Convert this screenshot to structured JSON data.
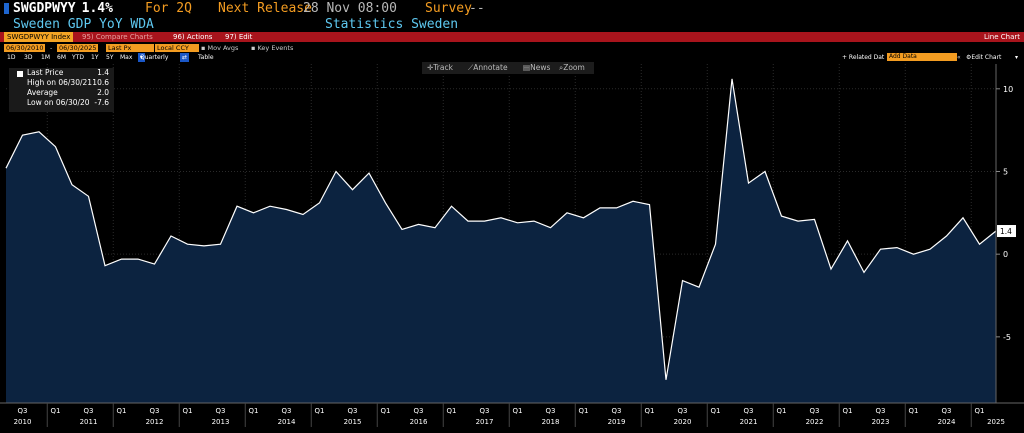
{
  "header": {
    "ticker": "SWGDPWYY",
    "value": "1.4%",
    "period_label": "For 2Q",
    "next_release_label": "Next Release",
    "next_release_value": "28 Nov 08:00",
    "survey_label": "Survey",
    "survey_value": "--",
    "description": "Sweden GDP YoY WDA",
    "source": "Statistics Sweden"
  },
  "toolbar": {
    "index": "SWGDPWYY Index",
    "compare": "95) Compare Charts",
    "actions": "96) Actions",
    "edit": "97) Edit",
    "chart_type": "Line Chart"
  },
  "controls": {
    "start_date": "06/30/2010",
    "end_date": "06/30/2025",
    "field": "Last Px",
    "currency": "Local CCY",
    "mov_avgs": "Mov Avgs",
    "key_events": "Key Events",
    "periods": [
      "1D",
      "3D",
      "1M",
      "6M",
      "YTD",
      "1Y",
      "5Y",
      "Max"
    ],
    "frequency": "Quarterly",
    "table": "Table",
    "related_data": "+ Related Dat",
    "add_data": "Add Data",
    "edit_chart": "Edit Chart"
  },
  "chart_tools": [
    "Track",
    "Annotate",
    "News",
    "Zoom"
  ],
  "legend": {
    "rows": [
      {
        "label": "Last Price",
        "value": "1.4"
      },
      {
        "label": "High on 06/30/21",
        "value": "10.6"
      },
      {
        "label": "Average",
        "value": "2.0"
      },
      {
        "label": "Low on 06/30/20",
        "value": "-7.6"
      }
    ]
  },
  "colors": {
    "line": "#ffffff",
    "area": "#0c2340",
    "background": "#000000",
    "amber": "#f39c21",
    "toolbar": "#a8141c"
  },
  "chart_data": {
    "type": "area",
    "x_quarters": [
      "Q2 2010",
      "Q3 2010",
      "Q4 2010",
      "Q1 2011",
      "Q2 2011",
      "Q3 2011",
      "Q4 2011",
      "Q1 2012",
      "Q2 2012",
      "Q3 2012",
      "Q4 2012",
      "Q1 2013",
      "Q2 2013",
      "Q3 2013",
      "Q4 2013",
      "Q1 2014",
      "Q2 2014",
      "Q3 2014",
      "Q4 2014",
      "Q1 2015",
      "Q2 2015",
      "Q3 2015",
      "Q4 2015",
      "Q1 2016",
      "Q2 2016",
      "Q3 2016",
      "Q4 2016",
      "Q1 2017",
      "Q2 2017",
      "Q3 2017",
      "Q4 2017",
      "Q1 2018",
      "Q2 2018",
      "Q3 2018",
      "Q4 2018",
      "Q1 2019",
      "Q2 2019",
      "Q3 2019",
      "Q4 2019",
      "Q1 2020",
      "Q2 2020",
      "Q3 2020",
      "Q4 2020",
      "Q1 2021",
      "Q2 2021",
      "Q3 2021",
      "Q4 2021",
      "Q1 2022",
      "Q2 2022",
      "Q3 2022",
      "Q4 2022",
      "Q1 2023",
      "Q2 2023",
      "Q3 2023",
      "Q4 2023",
      "Q1 2024",
      "Q2 2024",
      "Q3 2024",
      "Q4 2024",
      "Q1 2025",
      "Q2 2025"
    ],
    "values": [
      5.2,
      7.2,
      7.4,
      6.5,
      4.2,
      3.5,
      -0.7,
      -0.3,
      -0.3,
      -0.6,
      1.1,
      0.6,
      0.5,
      0.6,
      2.9,
      2.5,
      2.9,
      2.7,
      2.4,
      3.1,
      5.0,
      3.9,
      4.9,
      3.1,
      1.5,
      1.8,
      1.6,
      2.9,
      2.0,
      2.0,
      2.2,
      1.9,
      2.0,
      1.6,
      2.5,
      2.2,
      2.8,
      2.8,
      3.2,
      3.0,
      -7.6,
      -1.6,
      -2.0,
      0.6,
      10.6,
      4.3,
      5.0,
      2.3,
      2.0,
      2.1,
      -0.9,
      0.8,
      -1.1,
      0.3,
      0.4,
      0.0,
      0.3,
      1.1,
      2.2,
      0.6,
      1.4
    ],
    "last_value_label": "1.4",
    "y_ticks": [
      -5,
      0,
      5,
      10
    ],
    "ylim": [
      -9.0,
      11.5
    ],
    "x_tick_labels": [
      {
        "q": "Q3 2010",
        "label": "Q3"
      },
      {
        "q": "Q1 2011",
        "label": "Q1"
      },
      {
        "q": "Q3 2011",
        "label": "Q3"
      },
      {
        "q": "Q1 2012",
        "label": "Q1"
      },
      {
        "q": "Q3 2012",
        "label": "Q3"
      },
      {
        "q": "Q1 2013",
        "label": "Q1"
      },
      {
        "q": "Q3 2013",
        "label": "Q3"
      },
      {
        "q": "Q1 2014",
        "label": "Q1"
      },
      {
        "q": "Q3 2014",
        "label": "Q3"
      },
      {
        "q": "Q1 2015",
        "label": "Q1"
      },
      {
        "q": "Q3 2015",
        "label": "Q3"
      },
      {
        "q": "Q1 2016",
        "label": "Q1"
      },
      {
        "q": "Q3 2016",
        "label": "Q3"
      },
      {
        "q": "Q1 2017",
        "label": "Q1"
      },
      {
        "q": "Q3 2017",
        "label": "Q3"
      },
      {
        "q": "Q1 2018",
        "label": "Q1"
      },
      {
        "q": "Q3 2018",
        "label": "Q3"
      },
      {
        "q": "Q1 2019",
        "label": "Q1"
      },
      {
        "q": "Q3 2019",
        "label": "Q3"
      },
      {
        "q": "Q1 2020",
        "label": "Q1"
      },
      {
        "q": "Q3 2020",
        "label": "Q3"
      },
      {
        "q": "Q1 2021",
        "label": "Q1"
      },
      {
        "q": "Q3 2021",
        "label": "Q3"
      },
      {
        "q": "Q1 2022",
        "label": "Q1"
      },
      {
        "q": "Q3 2022",
        "label": "Q3"
      },
      {
        "q": "Q1 2023",
        "label": "Q1"
      },
      {
        "q": "Q3 2023",
        "label": "Q3"
      },
      {
        "q": "Q1 2024",
        "label": "Q1"
      },
      {
        "q": "Q3 2024",
        "label": "Q3"
      },
      {
        "q": "Q1 2025",
        "label": "Q1"
      }
    ],
    "year_labels": [
      {
        "q": "Q3 2010",
        "label": "2010"
      },
      {
        "q": "Q3 2011",
        "label": "2011"
      },
      {
        "q": "Q3 2012",
        "label": "2012"
      },
      {
        "q": "Q3 2013",
        "label": "2013"
      },
      {
        "q": "Q3 2014",
        "label": "2014"
      },
      {
        "q": "Q3 2015",
        "label": "2015"
      },
      {
        "q": "Q3 2016",
        "label": "2016"
      },
      {
        "q": "Q3 2017",
        "label": "2017"
      },
      {
        "q": "Q3 2018",
        "label": "2018"
      },
      {
        "q": "Q3 2019",
        "label": "2019"
      },
      {
        "q": "Q3 2020",
        "label": "2020"
      },
      {
        "q": "Q3 2021",
        "label": "2021"
      },
      {
        "q": "Q3 2022",
        "label": "2022"
      },
      {
        "q": "Q3 2023",
        "label": "2023"
      },
      {
        "q": "Q3 2024",
        "label": "2024"
      },
      {
        "q": "Q2 2025",
        "label": "2025"
      }
    ],
    "grid": true
  }
}
